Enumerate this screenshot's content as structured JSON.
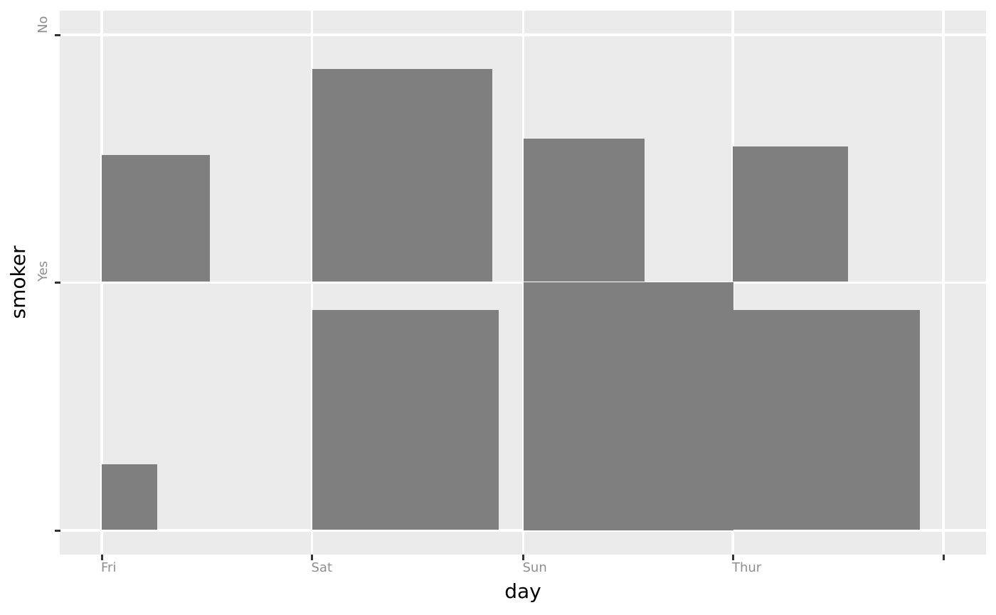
{
  "chart_data": {
    "type": "bar",
    "subtype": "count-proportional rectangles (ggplot-style, area ~ count, sqrt scaling, anchored at category gridline intersections)",
    "title": "",
    "xlabel": "day",
    "ylabel": "smoker",
    "x_categories": [
      "Fri",
      "Sat",
      "Sun",
      "Thur"
    ],
    "y_categories": [
      "No",
      "Yes"
    ],
    "x_tick_labels": [
      "Fri",
      "Sat",
      "Sun",
      "Thur",
      ""
    ],
    "y_tick_labels": [
      "No",
      "Yes",
      ""
    ],
    "cells": [
      {
        "day": "Fri",
        "smoker": "No",
        "count": 4
      },
      {
        "day": "Fri",
        "smoker": "Yes",
        "count": 15
      },
      {
        "day": "Sat",
        "smoker": "No",
        "count": 45
      },
      {
        "day": "Sat",
        "smoker": "Yes",
        "count": 42
      },
      {
        "day": "Sun",
        "smoker": "No",
        "count": 57
      },
      {
        "day": "Sun",
        "smoker": "Yes",
        "count": 19
      },
      {
        "day": "Thur",
        "smoker": "No",
        "count": 45
      },
      {
        "day": "Thur",
        "smoker": "Yes",
        "count": 17
      }
    ],
    "max_count": 57,
    "grid": "white major gridlines on gray panel, no minor gridlines",
    "legend": "none"
  },
  "colors": {
    "page_background": "#FFFFFF",
    "panel_background": "#EBEBEB",
    "gridline": "#FFFFFF",
    "bar_fill": "#7F7F7F",
    "tick_mark": "#333333",
    "tick_label": "#8E8E8E",
    "axis_title": "#000000"
  }
}
